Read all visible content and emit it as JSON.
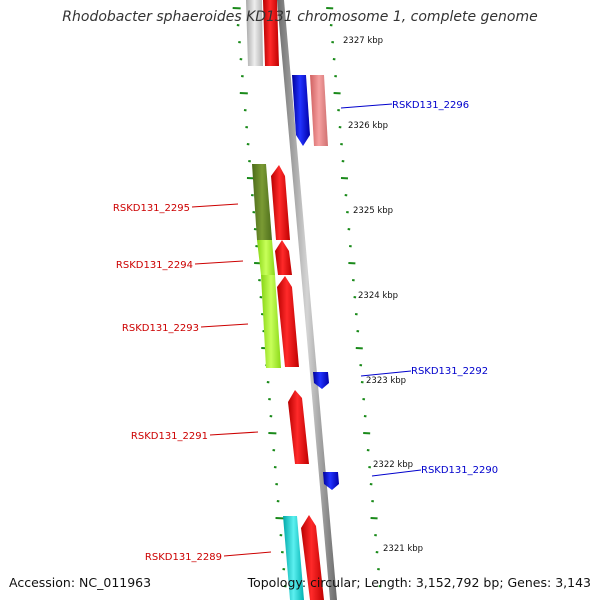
{
  "title": "Rhodobacter sphaeroides KD131 chromosome 1, complete genome",
  "footer": {
    "accession_label": "Accession:",
    "accession": "NC_011963",
    "topology_label": "Topology:",
    "topology": "circular",
    "length_label": "Length:",
    "length": "3,152,792 bp",
    "genes_label": "Genes:",
    "genes": "3,143"
  },
  "colors": {
    "backbone": "#9a9a9a",
    "tick": "#1a8a1a",
    "label_forward": "#cc0000",
    "label_reverse": "#0000cc"
  },
  "kbp_markers": [
    "2327 kbp",
    "2326 kbp",
    "2325 kbp",
    "2324 kbp",
    "2323 kbp",
    "2322 kbp",
    "2321 kbp"
  ],
  "gene_labels": [
    {
      "text": "RSKD131_2296",
      "strand": "reverse"
    },
    {
      "text": "RSKD131_2295",
      "strand": "forward"
    },
    {
      "text": "RSKD131_2294",
      "strand": "forward"
    },
    {
      "text": "RSKD131_2293",
      "strand": "forward"
    },
    {
      "text": "RSKD131_2292",
      "strand": "reverse"
    },
    {
      "text": "RSKD131_2291",
      "strand": "forward"
    },
    {
      "text": "RSKD131_2290",
      "strand": "reverse"
    },
    {
      "text": "RSKD131_2289",
      "strand": "forward"
    }
  ],
  "feature_colors": {
    "red": "#ff0000",
    "pink": "#f08080",
    "blue": "#0000ff",
    "gray": "#c8c8c8",
    "olive": "#6b8e23",
    "lime": "#adff2f",
    "cyan": "#00cccc"
  }
}
